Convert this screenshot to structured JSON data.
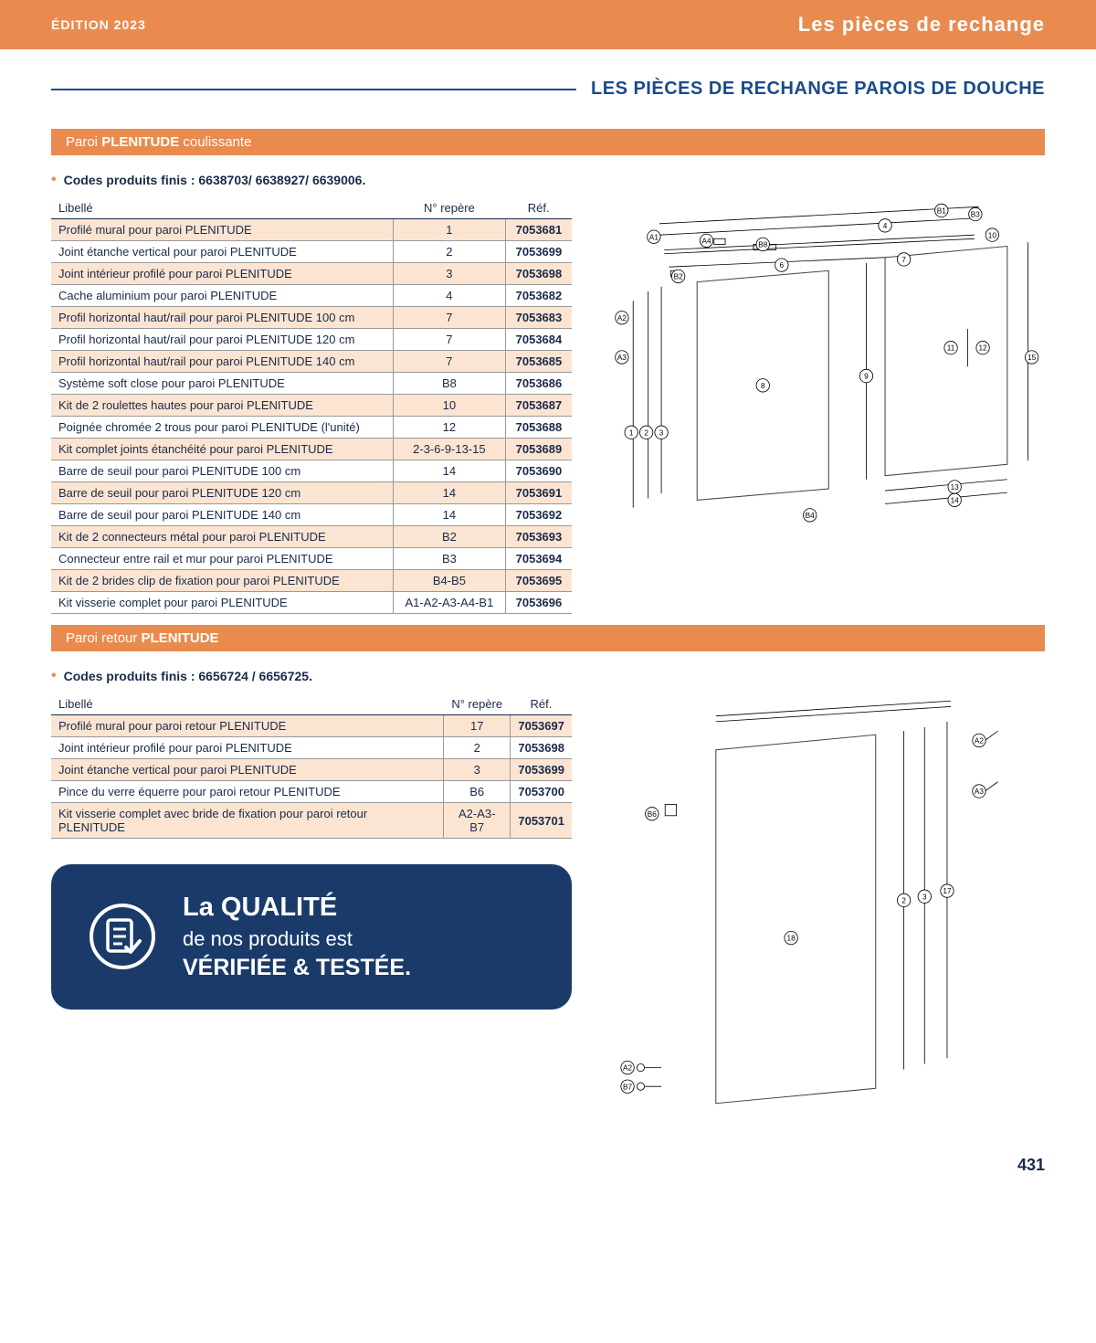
{
  "header": {
    "edition": "ÉDITION 2023",
    "category": "Les pièces de rechange"
  },
  "pageTitle": "LES PIÈCES DE RECHANGE PAROIS DE DOUCHE",
  "section1": {
    "bandPrefix": "Paroi ",
    "bandBold": "PLENITUDE",
    "bandSuffix": " coulissante",
    "codes": "Codes produits finis : 6638703/ 6638927/ 6639006.",
    "tableHead": [
      "Libellé",
      "N° repère",
      "Réf."
    ],
    "rows": [
      {
        "l": "Profilé mural pour paroi PLENITUDE",
        "n": "1",
        "r": "7053681"
      },
      {
        "l": "Joint étanche vertical pour paroi PLENITUDE",
        "n": "2",
        "r": "7053699"
      },
      {
        "l": "Joint intérieur profilé pour paroi PLENITUDE",
        "n": "3",
        "r": "7053698"
      },
      {
        "l": "Cache aluminium pour paroi PLENITUDE",
        "n": "4",
        "r": "7053682"
      },
      {
        "l": "Profil horizontal haut/rail pour paroi PLENITUDE 100 cm",
        "n": "7",
        "r": "7053683"
      },
      {
        "l": "Profil horizontal haut/rail pour paroi PLENITUDE 120 cm",
        "n": "7",
        "r": "7053684"
      },
      {
        "l": "Profil horizontal haut/rail pour paroi PLENITUDE 140 cm",
        "n": "7",
        "r": "7053685"
      },
      {
        "l": "Système soft close pour paroi PLENITUDE",
        "n": "B8",
        "r": "7053686"
      },
      {
        "l": "Kit de 2 roulettes hautes pour paroi PLENITUDE",
        "n": "10",
        "r": "7053687"
      },
      {
        "l": "Poignée chromée 2 trous pour paroi PLENITUDE (l'unité)",
        "n": "12",
        "r": "7053688"
      },
      {
        "l": "Kit complet joints étanchéité pour paroi PLENITUDE",
        "n": "2-3-6-9-13-15",
        "r": "7053689"
      },
      {
        "l": "Barre de seuil pour paroi PLENITUDE 100 cm",
        "n": "14",
        "r": "7053690"
      },
      {
        "l": "Barre de seuil pour paroi PLENITUDE 120 cm",
        "n": "14",
        "r": "7053691"
      },
      {
        "l": "Barre de seuil pour paroi PLENITUDE 140 cm",
        "n": "14",
        "r": "7053692"
      },
      {
        "l": "Kit de 2 connecteurs métal pour paroi PLENITUDE",
        "n": "B2",
        "r": "7053693"
      },
      {
        "l": "Connecteur entre rail et mur pour paroi PLENITUDE",
        "n": "B3",
        "r": "7053694"
      },
      {
        "l": "Kit de 2 brides clip de fixation pour paroi PLENITUDE",
        "n": "B4-B5",
        "r": "7053695"
      },
      {
        "l": "Kit visserie complet pour paroi PLENITUDE",
        "n": "A1-A2-A3-A4-B1",
        "r": "7053696"
      }
    ],
    "diagram": {
      "labels": [
        "1",
        "2",
        "3",
        "4",
        "6",
        "7",
        "8",
        "9",
        "10",
        "11",
        "12",
        "13",
        "14",
        "15",
        "A1",
        "A2",
        "A3",
        "A4",
        "B1",
        "B2",
        "B3",
        "B4",
        "B8"
      ]
    }
  },
  "section2": {
    "bandPrefix": "Paroi retour ",
    "bandBold": "PLENITUDE",
    "bandSuffix": "",
    "codes": "Codes produits finis : 6656724 / 6656725.",
    "tableHead": [
      "Libellé",
      "N° repère",
      "Réf."
    ],
    "rows": [
      {
        "l": "Profilé mural pour paroi retour PLENITUDE",
        "n": "17",
        "r": "7053697"
      },
      {
        "l": "Joint intérieur profilé pour paroi PLENITUDE",
        "n": "2",
        "r": "7053698"
      },
      {
        "l": "Joint étanche vertical pour paroi PLENITUDE",
        "n": "3",
        "r": "7053699"
      },
      {
        "l": "Pince du verre équerre pour paroi retour PLENITUDE",
        "n": "B6",
        "r": "7053700"
      },
      {
        "l": "Kit visserie complet avec bride de fixation pour paroi retour PLENITUDE",
        "n": "A2-A3-B7",
        "r": "7053701"
      }
    ],
    "diagram": {
      "labels": [
        "2",
        "3",
        "17",
        "18",
        "A2",
        "A3",
        "B6",
        "B7"
      ]
    }
  },
  "quality": {
    "l1": "La QUALITÉ",
    "l2": "de nos produits est",
    "l3": "VÉRIFIÉE & TESTÉE."
  },
  "pageNumber": "431",
  "colors": {
    "accent": "#e98b4f",
    "navy": "#1a3a6a",
    "headBlue": "#1a4a8a",
    "rowOdd": "#fbe5d2"
  }
}
